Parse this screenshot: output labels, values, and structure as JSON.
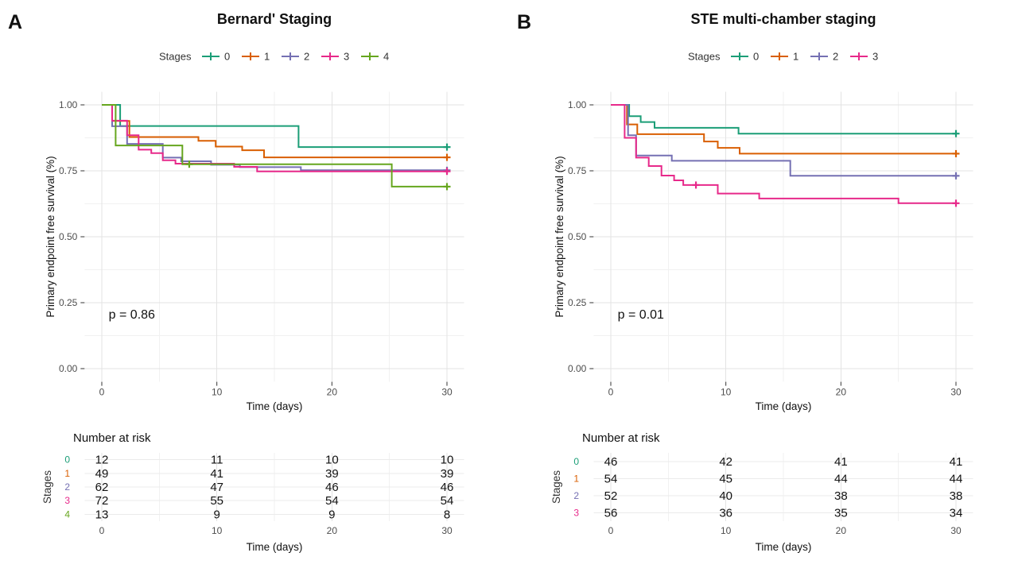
{
  "figure": {
    "background": "#ffffff"
  },
  "palette": {
    "stage0": "#1B9E77",
    "stage1": "#D95F02",
    "stage2": "#7570B3",
    "stage3": "#E7298A",
    "stage4": "#66A61E"
  },
  "chart_data": [
    {
      "type": "line",
      "subtype": "kaplan-meier-step",
      "panel_label": "A",
      "title": "Bernard' Staging",
      "legend": {
        "title": "Stages",
        "position": "top",
        "entries": [
          "0",
          "1",
          "2",
          "3",
          "4"
        ]
      },
      "xlabel": "Time (days)",
      "ylabel": "Primary endpoint free survival (%)",
      "xticks": [
        0,
        10,
        20,
        30
      ],
      "yticks": [
        0,
        0.25,
        0.5,
        0.75,
        1
      ],
      "ytick_labels": [
        "0.00",
        "0.25",
        "0.50",
        "0.75",
        "1.00"
      ],
      "xlim": [
        -1.5,
        31.5
      ],
      "ylim": [
        -0.05,
        1.05
      ],
      "grid": true,
      "pvalue": "p = 0.86",
      "pvalue_xy": [
        0.6,
        0.19
      ],
      "series": [
        {
          "name": "0",
          "color": "#1B9E77",
          "steps": [
            [
              0,
              1
            ],
            [
              1.6,
              0.92
            ],
            [
              17.1,
              0.84
            ],
            [
              30,
              0.84
            ]
          ],
          "censors": [
            [
              30,
              0.84
            ]
          ]
        },
        {
          "name": "1",
          "color": "#D95F02",
          "steps": [
            [
              0,
              1
            ],
            [
              0.9,
              0.939
            ],
            [
              2.4,
              0.878
            ],
            [
              8.4,
              0.864
            ],
            [
              9.9,
              0.842
            ],
            [
              12.2,
              0.828
            ],
            [
              14.1,
              0.801
            ],
            [
              30,
              0.801
            ]
          ],
          "censors": [
            [
              30,
              0.801
            ]
          ]
        },
        {
          "name": "2",
          "color": "#7570B3",
          "steps": [
            [
              0,
              1
            ],
            [
              0.9,
              0.919
            ],
            [
              2.2,
              0.852
            ],
            [
              5.3,
              0.8
            ],
            [
              6.9,
              0.786
            ],
            [
              9.5,
              0.773
            ],
            [
              12,
              0.764
            ],
            [
              17.3,
              0.752
            ],
            [
              30,
              0.752
            ]
          ],
          "censors": [
            [
              30,
              0.752
            ]
          ]
        },
        {
          "name": "3",
          "color": "#E7298A",
          "steps": [
            [
              0,
              1
            ],
            [
              0.9,
              0.94
            ],
            [
              2.2,
              0.885
            ],
            [
              3.2,
              0.83
            ],
            [
              4.3,
              0.817
            ],
            [
              5.3,
              0.79
            ],
            [
              6.4,
              0.777
            ],
            [
              11.5,
              0.765
            ],
            [
              13.5,
              0.748
            ],
            [
              30,
              0.748
            ]
          ],
          "censors": [
            [
              30,
              0.748
            ]
          ]
        },
        {
          "name": "4",
          "color": "#66A61E",
          "steps": [
            [
              0,
              1
            ],
            [
              1.2,
              0.846
            ],
            [
              7,
              0.775
            ],
            [
              25.2,
              0.69
            ],
            [
              30,
              0.69
            ]
          ],
          "censors": [
            [
              7.6,
              0.775
            ],
            [
              30,
              0.69
            ]
          ]
        }
      ],
      "risk_table": {
        "title": "Number at risk",
        "ylabel": "Stages",
        "xlabel": "Time (days)",
        "time_points": [
          0,
          10,
          20,
          30
        ],
        "rows": [
          {
            "label": "0",
            "color": "#1B9E77",
            "counts": [
              12,
              11,
              10,
              10
            ]
          },
          {
            "label": "1",
            "color": "#D95F02",
            "counts": [
              49,
              41,
              39,
              39
            ]
          },
          {
            "label": "2",
            "color": "#7570B3",
            "counts": [
              62,
              47,
              46,
              46
            ]
          },
          {
            "label": "3",
            "color": "#E7298A",
            "counts": [
              72,
              55,
              54,
              54
            ]
          },
          {
            "label": "4",
            "color": "#66A61E",
            "counts": [
              13,
              9,
              9,
              8
            ]
          }
        ]
      }
    },
    {
      "type": "line",
      "subtype": "kaplan-meier-step",
      "panel_label": "B",
      "title": "STE multi-chamber staging",
      "legend": {
        "title": "Stages",
        "position": "top",
        "entries": [
          "0",
          "1",
          "2",
          "3"
        ]
      },
      "xlabel": "Time (days)",
      "ylabel": "Primary endpoint free survival (%)",
      "xticks": [
        0,
        10,
        20,
        30
      ],
      "yticks": [
        0,
        0.25,
        0.5,
        0.75,
        1
      ],
      "ytick_labels": [
        "0.00",
        "0.25",
        "0.50",
        "0.75",
        "1.00"
      ],
      "xlim": [
        -1.5,
        31.5
      ],
      "ylim": [
        -0.05,
        1.05
      ],
      "grid": true,
      "pvalue": "p = 0.01",
      "pvalue_xy": [
        0.6,
        0.19
      ],
      "series": [
        {
          "name": "0",
          "color": "#1B9E77",
          "steps": [
            [
              0,
              1
            ],
            [
              1.6,
              0.957
            ],
            [
              2.6,
              0.935
            ],
            [
              3.8,
              0.913
            ],
            [
              11.1,
              0.891
            ],
            [
              30,
              0.891
            ]
          ],
          "censors": [
            [
              30,
              0.891
            ]
          ]
        },
        {
          "name": "1",
          "color": "#D95F02",
          "steps": [
            [
              0,
              1
            ],
            [
              1.4,
              0.926
            ],
            [
              2.3,
              0.889
            ],
            [
              8.1,
              0.861
            ],
            [
              9.3,
              0.837
            ],
            [
              11.2,
              0.815
            ],
            [
              30,
              0.815
            ]
          ],
          "censors": [
            [
              30,
              0.815
            ]
          ]
        },
        {
          "name": "2",
          "color": "#7570B3",
          "steps": [
            [
              0,
              1
            ],
            [
              1.5,
              0.885
            ],
            [
              2.2,
              0.808
            ],
            [
              5.3,
              0.788
            ],
            [
              15.6,
              0.731
            ],
            [
              30,
              0.731
            ]
          ],
          "censors": [
            [
              30,
              0.731
            ]
          ]
        },
        {
          "name": "3",
          "color": "#E7298A",
          "steps": [
            [
              0,
              1
            ],
            [
              1.2,
              0.875
            ],
            [
              2.2,
              0.8
            ],
            [
              3.3,
              0.768
            ],
            [
              4.4,
              0.732
            ],
            [
              5.5,
              0.714
            ],
            [
              6.3,
              0.696
            ],
            [
              9.3,
              0.664
            ],
            [
              12.9,
              0.645
            ],
            [
              25,
              0.627
            ],
            [
              30,
              0.627
            ]
          ],
          "censors": [
            [
              7.4,
              0.696
            ],
            [
              30,
              0.627
            ]
          ]
        }
      ],
      "risk_table": {
        "title": "Number at risk",
        "ylabel": "Stages",
        "xlabel": "Time (days)",
        "time_points": [
          0,
          10,
          20,
          30
        ],
        "rows": [
          {
            "label": "0",
            "color": "#1B9E77",
            "counts": [
              46,
              42,
              41,
              41
            ]
          },
          {
            "label": "1",
            "color": "#D95F02",
            "counts": [
              54,
              45,
              44,
              44
            ]
          },
          {
            "label": "2",
            "color": "#7570B3",
            "counts": [
              52,
              40,
              38,
              38
            ]
          },
          {
            "label": "3",
            "color": "#E7298A",
            "counts": [
              56,
              36,
              35,
              34
            ]
          }
        ]
      }
    }
  ]
}
